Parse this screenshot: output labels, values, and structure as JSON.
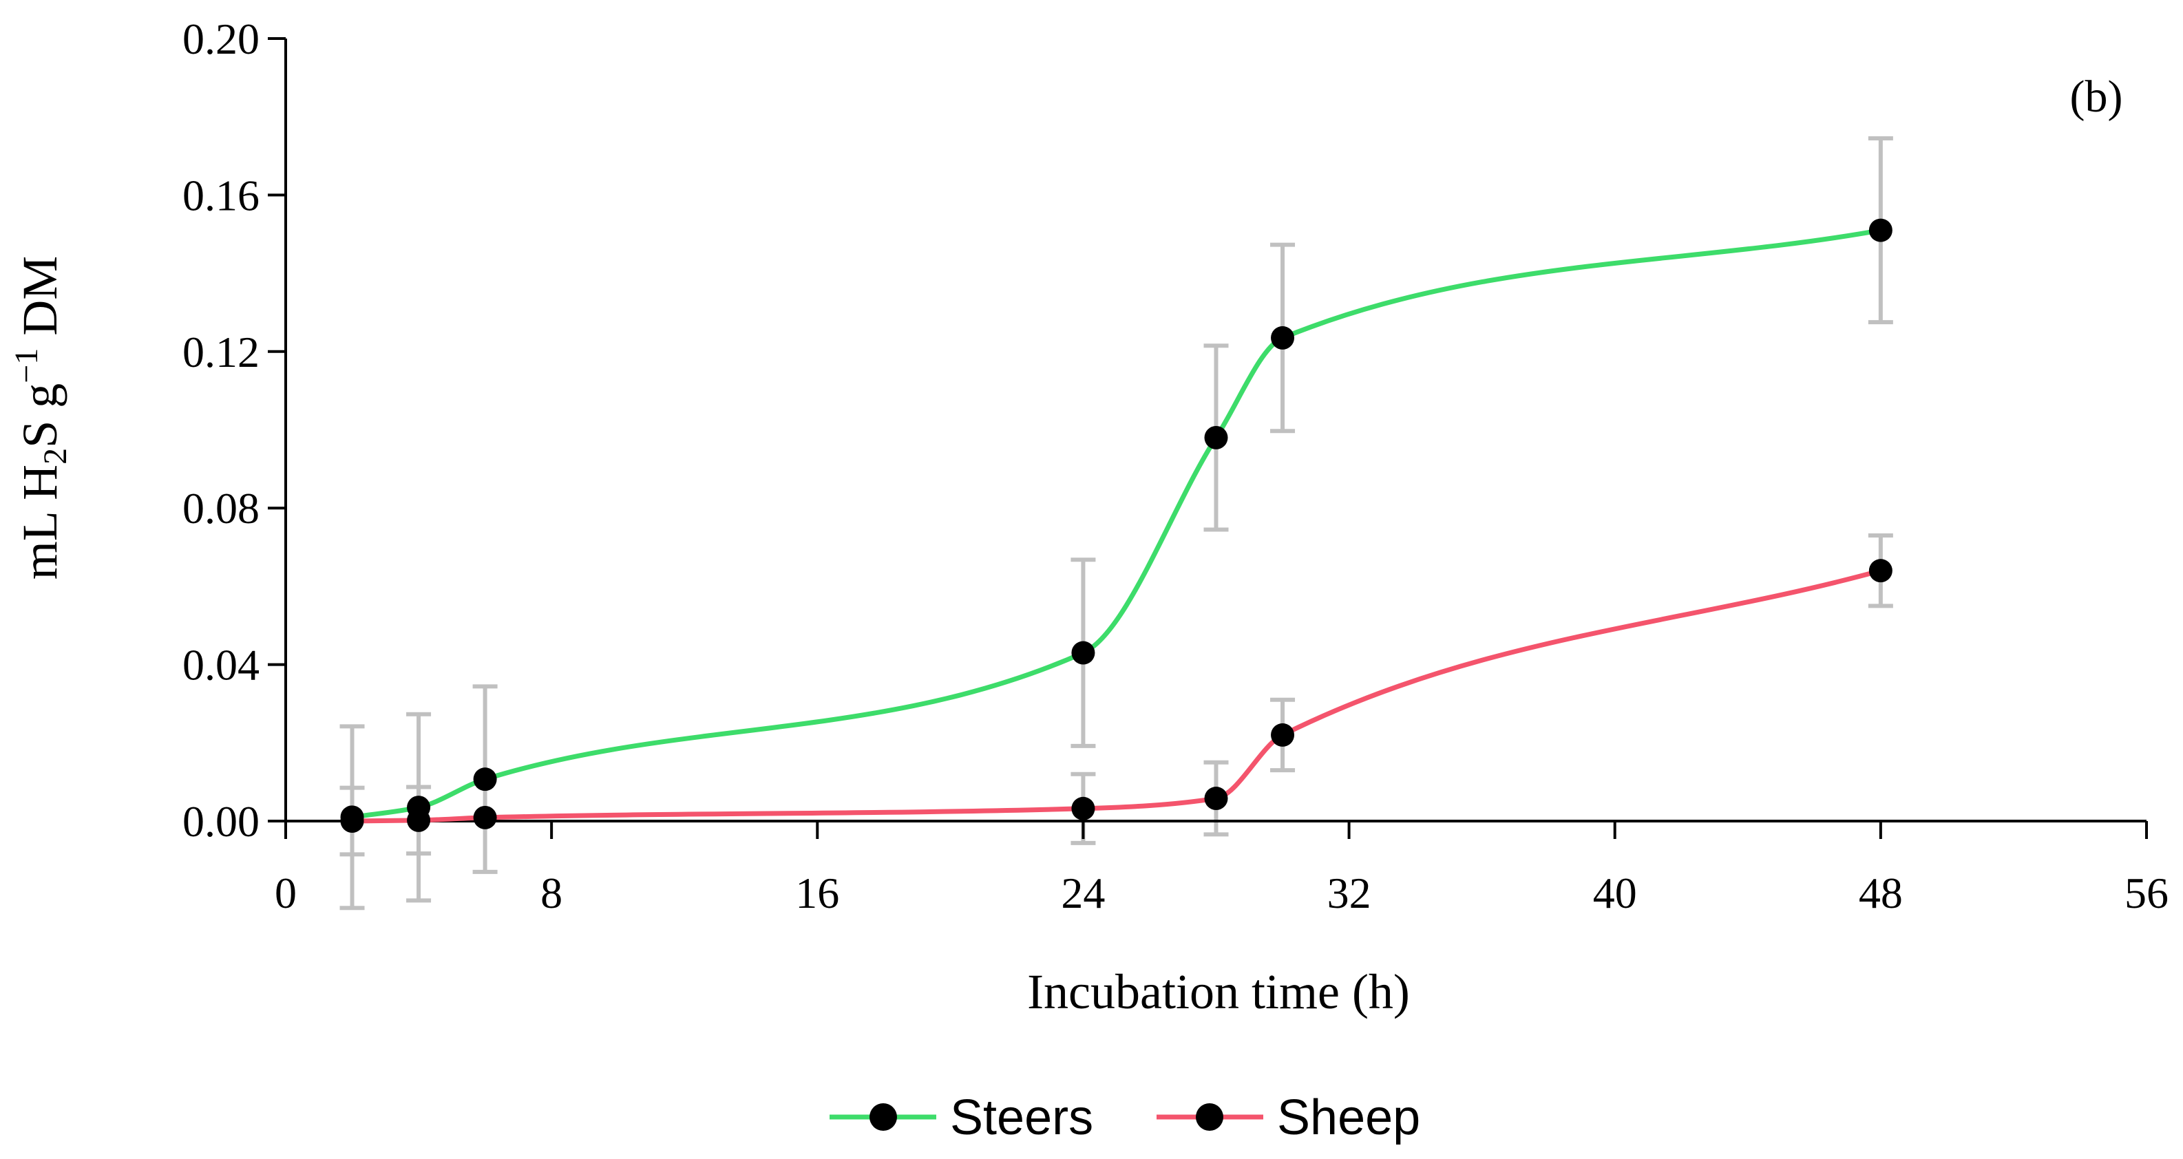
{
  "chart_data": {
    "type": "line",
    "title": "",
    "panel_label": "(b)",
    "xlabel": "Incubation time (h)",
    "ylabel": {
      "prefix": "mL H",
      "sub": "2",
      "mid": "S g",
      "sup": "−1",
      "suffix": " DM"
    },
    "xlim": [
      0,
      56
    ],
    "ylim": [
      0,
      0.2
    ],
    "x_ticks": [
      0,
      8,
      16,
      24,
      32,
      40,
      48,
      56
    ],
    "x_tick_labels": [
      "0",
      "8",
      "16",
      "24",
      "32",
      "40",
      "48",
      "56"
    ],
    "y_ticks": [
      0,
      0.04,
      0.08,
      0.12,
      0.16,
      0.2
    ],
    "y_tick_labels": [
      "0.00",
      "0.04",
      "0.08",
      "0.12",
      "0.16",
      "0.20"
    ],
    "grid": false,
    "legend_position": "bottom-center",
    "series": [
      {
        "name": "Steers",
        "color": "#3ddc6a",
        "x": [
          2,
          4,
          6,
          24,
          28,
          30,
          48
        ],
        "y": [
          0.001,
          0.0035,
          0.0107,
          0.043,
          0.098,
          0.1235,
          0.151
        ],
        "err": [
          0.0232,
          0.0238,
          0.0237,
          0.0238,
          0.0235,
          0.0238,
          0.0235
        ]
      },
      {
        "name": "Sheep",
        "color": "#f4546c",
        "x": [
          2,
          4,
          6,
          24,
          28,
          30,
          48
        ],
        "y": [
          0.0,
          0.0002,
          0.0009,
          0.0032,
          0.0058,
          0.022,
          0.064
        ],
        "err": [
          0.0085,
          0.0085,
          0.0,
          0.0088,
          0.0092,
          0.009,
          0.009
        ]
      }
    ],
    "error_bar_color": "#c0c0c0",
    "marker_color": "#000000"
  }
}
